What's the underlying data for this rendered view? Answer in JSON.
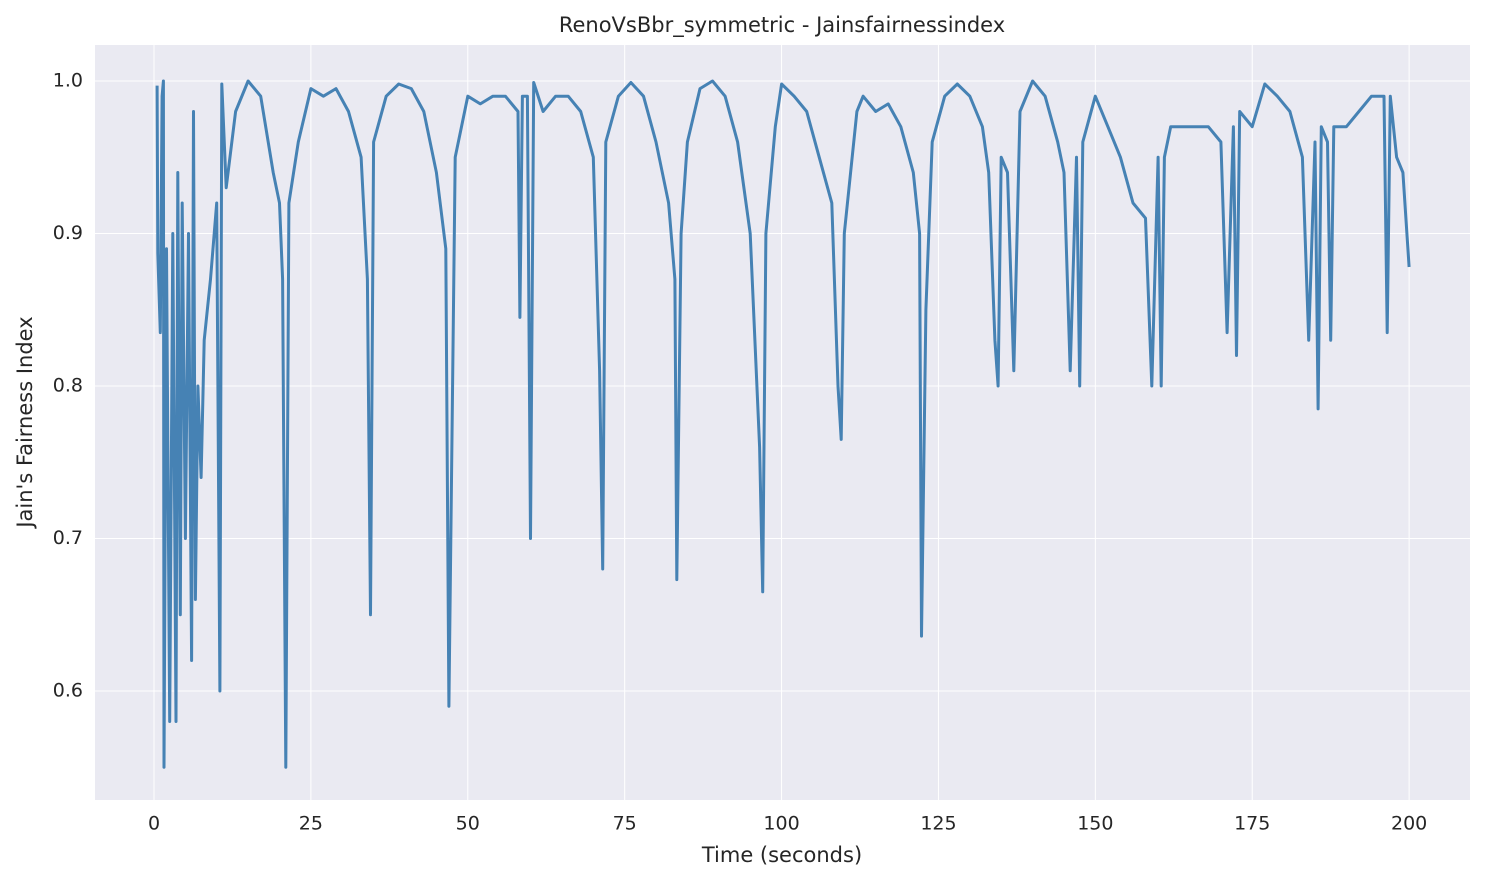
{
  "chart_data": {
    "type": "line",
    "title": "RenoVsBbr_symmetric - Jainsfairnessindex",
    "x_label": "Time (seconds)",
    "y_label": "Jain's Fairness Index",
    "xlim": [
      -9.4,
      209.7
    ],
    "ylim": [
      0.5285,
      1.0236
    ],
    "xticks": [
      0,
      25,
      50,
      75,
      100,
      125,
      150,
      175,
      200
    ],
    "yticks": [
      0.6,
      0.7,
      0.8,
      0.9,
      {
        "value": 1,
        "label": "1.0"
      }
    ],
    "grid": true,
    "series": [
      {
        "color": "#4682b4",
        "x": [
          0.5,
          0.6,
          1,
          1.3,
          1.5,
          1.6,
          2,
          2.5,
          3,
          3.5,
          3.8,
          4.2,
          4.5,
          5,
          5.5,
          6,
          6.3,
          6.6,
          7,
          7.5,
          8,
          9,
          10,
          10.5,
          10.8,
          11.5,
          13,
          15,
          17,
          19,
          20,
          20.5,
          21,
          21.5,
          23,
          25,
          27,
          29,
          31,
          33,
          34,
          34.5,
          35,
          37,
          39,
          41,
          43,
          45,
          46.5,
          47,
          48,
          50,
          52,
          54,
          56,
          58,
          58.3,
          58.7,
          59.5,
          60,
          60.5,
          62,
          64,
          66,
          68,
          70,
          71,
          71.5,
          72,
          74,
          76,
          78,
          80,
          82,
          83,
          83.3,
          84,
          85,
          87,
          89,
          91,
          93,
          95,
          96.5,
          97,
          97.5,
          99,
          100,
          102,
          104,
          106,
          108,
          109,
          109.5,
          110,
          111,
          112,
          113,
          115,
          117,
          119,
          121,
          122,
          122.3,
          123,
          124,
          126,
          128,
          130,
          132,
          133,
          134,
          134.5,
          135,
          136,
          137,
          138,
          140,
          142,
          144,
          145,
          146,
          147,
          147.5,
          148,
          150,
          152,
          154,
          156,
          158,
          159,
          160,
          160.5,
          161,
          162,
          164,
          166,
          168,
          170,
          171,
          172,
          172.5,
          173,
          175,
          177,
          179,
          181,
          183,
          184,
          185,
          185.5,
          186,
          187,
          187.5,
          188,
          190,
          192,
          194,
          196,
          196.5,
          197,
          198,
          199,
          200
        ],
        "values": [
          0.997,
          0.887,
          0.835,
          0.99,
          1.0,
          0.55,
          0.89,
          0.58,
          0.9,
          0.58,
          0.94,
          0.65,
          0.92,
          0.7,
          0.9,
          0.62,
          0.98,
          0.66,
          0.8,
          0.74,
          0.83,
          0.87,
          0.92,
          0.6,
          0.998,
          0.93,
          0.98,
          1.0,
          0.99,
          0.94,
          0.92,
          0.87,
          0.55,
          0.92,
          0.96,
          0.995,
          0.99,
          0.995,
          0.98,
          0.95,
          0.87,
          0.65,
          0.96,
          0.99,
          0.998,
          0.995,
          0.98,
          0.94,
          0.89,
          0.59,
          0.95,
          0.99,
          0.985,
          0.99,
          0.99,
          0.98,
          0.845,
          0.99,
          0.99,
          0.7,
          0.999,
          0.98,
          0.99,
          0.99,
          0.98,
          0.95,
          0.81,
          0.68,
          0.96,
          0.99,
          0.999,
          0.99,
          0.96,
          0.92,
          0.87,
          0.673,
          0.9,
          0.96,
          0.995,
          1.0,
          0.99,
          0.96,
          0.9,
          0.76,
          0.665,
          0.9,
          0.97,
          0.998,
          0.99,
          0.98,
          0.95,
          0.92,
          0.8,
          0.765,
          0.9,
          0.94,
          0.98,
          0.99,
          0.98,
          0.985,
          0.97,
          0.94,
          0.9,
          0.636,
          0.85,
          0.96,
          0.99,
          0.998,
          0.99,
          0.97,
          0.94,
          0.83,
          0.8,
          0.95,
          0.94,
          0.81,
          0.98,
          1.0,
          0.99,
          0.96,
          0.94,
          0.81,
          0.95,
          0.8,
          0.96,
          0.99,
          0.97,
          0.95,
          0.92,
          0.91,
          0.8,
          0.95,
          0.8,
          0.95,
          0.97,
          0.97,
          0.97,
          0.97,
          0.96,
          0.835,
          0.97,
          0.82,
          0.98,
          0.97,
          0.998,
          0.99,
          0.98,
          0.95,
          0.83,
          0.96,
          0.785,
          0.97,
          0.96,
          0.83,
          0.97,
          0.97,
          0.98,
          0.99,
          0.99,
          0.835,
          0.99,
          0.95,
          0.94,
          0.878
        ]
      }
    ]
  }
}
